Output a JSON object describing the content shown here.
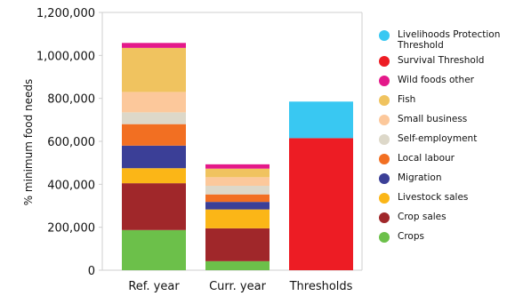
{
  "chart_data": {
    "type": "bar",
    "stacked": true,
    "ylabel": "% minimum food needs",
    "ylim": [
      0,
      1200000
    ],
    "yticks": [
      0,
      200000,
      400000,
      600000,
      800000,
      1000000,
      1200000
    ],
    "ytick_labels": [
      "0",
      "200,000",
      "400,000",
      "600,000",
      "800,000",
      "1,000,000",
      "1,200,000"
    ],
    "categories": [
      "Ref. year",
      "Curr. year",
      "Thresholds"
    ],
    "series": [
      {
        "name": "Crops",
        "color": "#6cc04a",
        "values": [
          187000,
          42000,
          0
        ]
      },
      {
        "name": "Crop sales",
        "color": "#a0272a",
        "values": [
          218000,
          153000,
          0
        ]
      },
      {
        "name": "Livestock sales",
        "color": "#fbb617",
        "values": [
          70000,
          88000,
          0
        ]
      },
      {
        "name": "Migration",
        "color": "#3b3f97",
        "values": [
          105000,
          35000,
          0
        ]
      },
      {
        "name": "Local labour",
        "color": "#f26f22",
        "values": [
          100000,
          35000,
          0
        ]
      },
      {
        "name": "Self-employment",
        "color": "#ddd8c9",
        "values": [
          55000,
          40000,
          0
        ]
      },
      {
        "name": "Small business",
        "color": "#fcc89b",
        "values": [
          95000,
          40000,
          0
        ]
      },
      {
        "name": "Fish",
        "color": "#f0c35f",
        "values": [
          205000,
          40000,
          0
        ]
      },
      {
        "name": "Wild foods other",
        "color": "#e4198a",
        "values": [
          23000,
          20000,
          0
        ]
      },
      {
        "name": "Survival Threshold",
        "color": "#ed1c24",
        "values": [
          0,
          0,
          615000
        ]
      },
      {
        "name": "Livelihoods Protection Threshold",
        "color": "#39c8f2",
        "values": [
          0,
          0,
          170000
        ]
      }
    ],
    "legend": {
      "placement": "right",
      "order": [
        "Livelihoods Protection Threshold",
        "Survival Threshold",
        "Wild foods other",
        "Fish",
        "Small business",
        "Self-employment",
        "Local labour",
        "Migration",
        "Livestock sales",
        "Crop sales",
        "Crops"
      ]
    },
    "grid": false
  }
}
